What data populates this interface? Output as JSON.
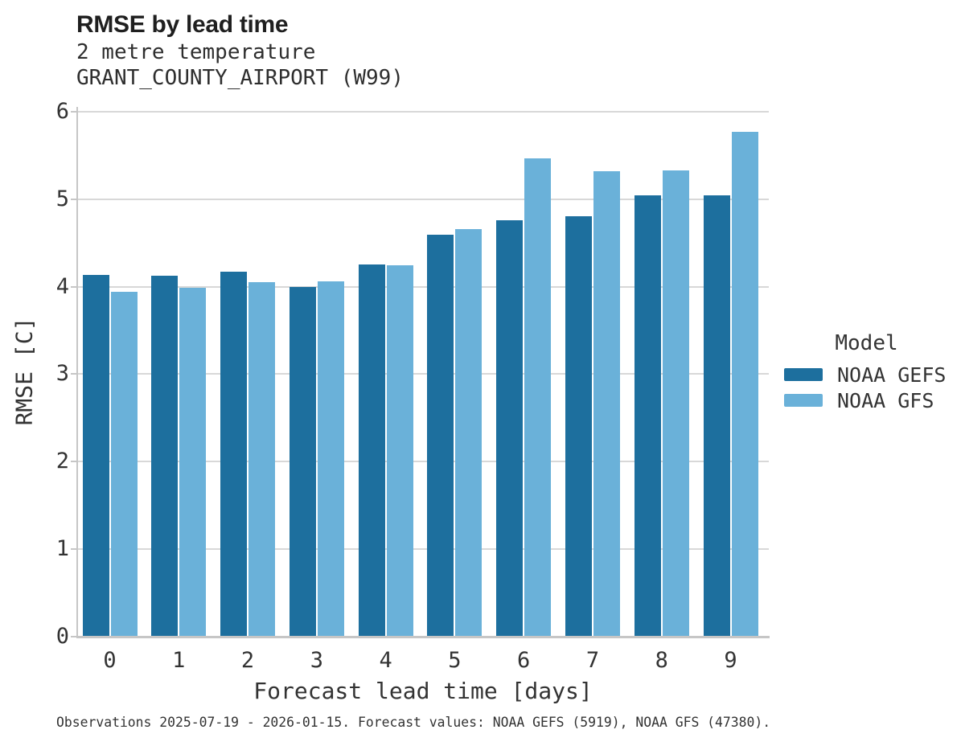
{
  "header": {
    "title": "RMSE by lead time",
    "subtitle1": "2 metre temperature",
    "subtitle2": "GRANT_COUNTY_AIRPORT (W99)"
  },
  "axes": {
    "x_title": "Forecast lead time [days]",
    "y_title": "RMSE [C]"
  },
  "legend": {
    "title": "Model"
  },
  "caption": "Observations 2025-07-19 - 2026-01-15. Forecast values: NOAA GEFS (5919), NOAA GFS (47380).",
  "colors": {
    "gefs": "#1d6f9e",
    "gfs": "#6ab1d9",
    "gridline": "#d8d8d8",
    "axis_line": "#c6c6c6",
    "text": "#333333"
  },
  "chart_data": {
    "type": "bar",
    "title": "RMSE by lead time",
    "subtitle": [
      "2 metre temperature",
      "GRANT_COUNTY_AIRPORT (W99)"
    ],
    "xlabel": "Forecast lead time [days]",
    "ylabel": "RMSE [C]",
    "categories": [
      "0",
      "1",
      "2",
      "3",
      "4",
      "5",
      "6",
      "7",
      "8",
      "9"
    ],
    "series": [
      {
        "name": "NOAA GEFS",
        "color": "#1d6f9e",
        "values": [
          4.14,
          4.13,
          4.18,
          4.0,
          4.26,
          4.6,
          4.77,
          4.81,
          5.05,
          5.05
        ]
      },
      {
        "name": "NOAA GFS",
        "color": "#6ab1d9",
        "values": [
          3.95,
          3.99,
          4.06,
          4.07,
          4.25,
          4.66,
          5.47,
          5.33,
          5.34,
          5.78
        ]
      }
    ],
    "ylim": [
      0,
      6
    ],
    "yticks": [
      0,
      1,
      2,
      3,
      4,
      5,
      6
    ],
    "grid": "horizontal",
    "legend_title": "Model",
    "legend_position": "right",
    "caption": "Observations 2025-07-19 - 2026-01-15. Forecast values: NOAA GEFS (5919), NOAA GFS (47380)."
  }
}
